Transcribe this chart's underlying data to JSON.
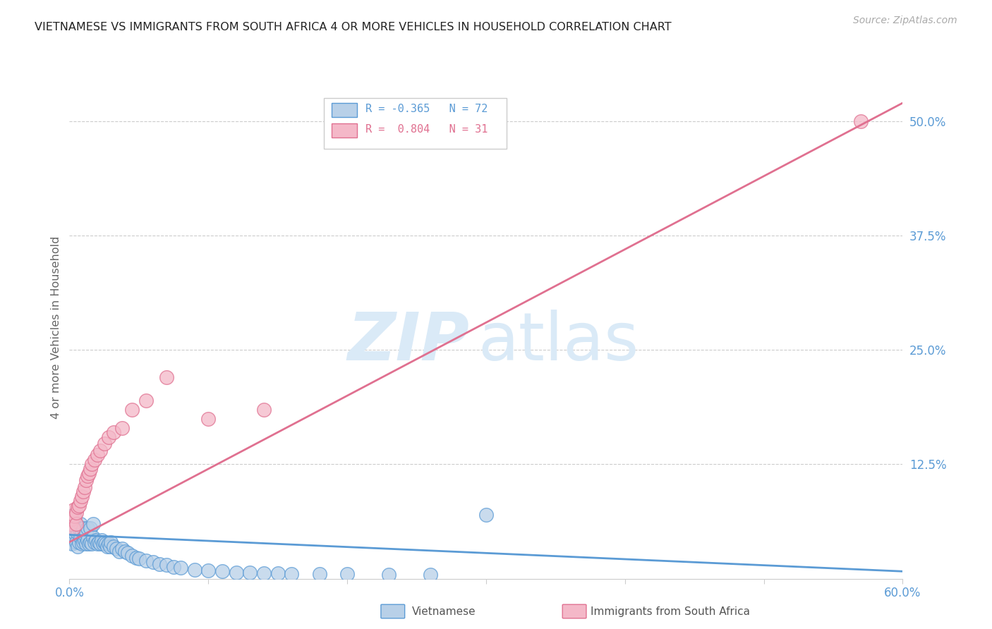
{
  "title": "VIETNAMESE VS IMMIGRANTS FROM SOUTH AFRICA 4 OR MORE VEHICLES IN HOUSEHOLD CORRELATION CHART",
  "source": "Source: ZipAtlas.com",
  "ylabel": "4 or more Vehicles in Household",
  "right_yticks": [
    "50.0%",
    "37.5%",
    "25.0%",
    "12.5%"
  ],
  "right_ytick_vals": [
    0.5,
    0.375,
    0.25,
    0.125
  ],
  "xlim": [
    0.0,
    0.6
  ],
  "ylim": [
    0.0,
    0.55
  ],
  "title_color": "#222222",
  "source_color": "#aaaaaa",
  "right_tick_color": "#5b9bd5",
  "ylabel_color": "#666666",
  "grid_color": "#cccccc",
  "viet_color": "#b8d0e8",
  "viet_edge_color": "#5b9bd5",
  "sa_color": "#f4b8c8",
  "sa_edge_color": "#e07090",
  "watermark_zip": "ZIP",
  "watermark_atlas": "atlas",
  "watermark_color": "#daeaf7",
  "legend_box_color": "#e8e8e8",
  "viet_scatter_x": [
    0.001,
    0.002,
    0.002,
    0.003,
    0.003,
    0.004,
    0.004,
    0.005,
    0.005,
    0.006,
    0.006,
    0.007,
    0.007,
    0.008,
    0.008,
    0.009,
    0.009,
    0.01,
    0.01,
    0.011,
    0.011,
    0.012,
    0.012,
    0.013,
    0.013,
    0.014,
    0.015,
    0.015,
    0.016,
    0.017,
    0.017,
    0.018,
    0.019,
    0.02,
    0.021,
    0.022,
    0.023,
    0.024,
    0.025,
    0.026,
    0.027,
    0.028,
    0.029,
    0.03,
    0.032,
    0.034,
    0.036,
    0.038,
    0.04,
    0.042,
    0.045,
    0.048,
    0.05,
    0.055,
    0.06,
    0.065,
    0.07,
    0.075,
    0.08,
    0.09,
    0.1,
    0.11,
    0.12,
    0.13,
    0.14,
    0.15,
    0.16,
    0.18,
    0.2,
    0.23,
    0.26,
    0.3
  ],
  "viet_scatter_y": [
    0.04,
    0.038,
    0.055,
    0.045,
    0.07,
    0.05,
    0.065,
    0.04,
    0.06,
    0.035,
    0.05,
    0.04,
    0.055,
    0.045,
    0.06,
    0.038,
    0.052,
    0.04,
    0.055,
    0.042,
    0.048,
    0.038,
    0.05,
    0.042,
    0.055,
    0.038,
    0.04,
    0.055,
    0.038,
    0.045,
    0.06,
    0.04,
    0.042,
    0.038,
    0.04,
    0.038,
    0.042,
    0.038,
    0.04,
    0.038,
    0.035,
    0.038,
    0.035,
    0.04,
    0.035,
    0.033,
    0.03,
    0.033,
    0.03,
    0.028,
    0.025,
    0.023,
    0.022,
    0.02,
    0.018,
    0.016,
    0.015,
    0.013,
    0.012,
    0.01,
    0.009,
    0.008,
    0.007,
    0.007,
    0.006,
    0.006,
    0.005,
    0.005,
    0.005,
    0.004,
    0.004,
    0.07
  ],
  "sa_scatter_x": [
    0.001,
    0.002,
    0.003,
    0.003,
    0.004,
    0.005,
    0.005,
    0.006,
    0.007,
    0.008,
    0.009,
    0.01,
    0.011,
    0.012,
    0.013,
    0.014,
    0.015,
    0.016,
    0.018,
    0.02,
    0.022,
    0.025,
    0.028,
    0.032,
    0.038,
    0.045,
    0.055,
    0.07,
    0.1,
    0.14,
    0.57
  ],
  "sa_scatter_y": [
    0.06,
    0.065,
    0.055,
    0.075,
    0.068,
    0.06,
    0.072,
    0.078,
    0.08,
    0.085,
    0.09,
    0.095,
    0.1,
    0.108,
    0.112,
    0.115,
    0.12,
    0.125,
    0.13,
    0.135,
    0.14,
    0.148,
    0.155,
    0.16,
    0.165,
    0.185,
    0.195,
    0.22,
    0.175,
    0.185,
    0.5
  ],
  "viet_line_x": [
    0.0,
    0.6
  ],
  "viet_line_y": [
    0.048,
    0.008
  ],
  "sa_line_x": [
    0.0,
    0.6
  ],
  "sa_line_y": [
    0.04,
    0.52
  ]
}
